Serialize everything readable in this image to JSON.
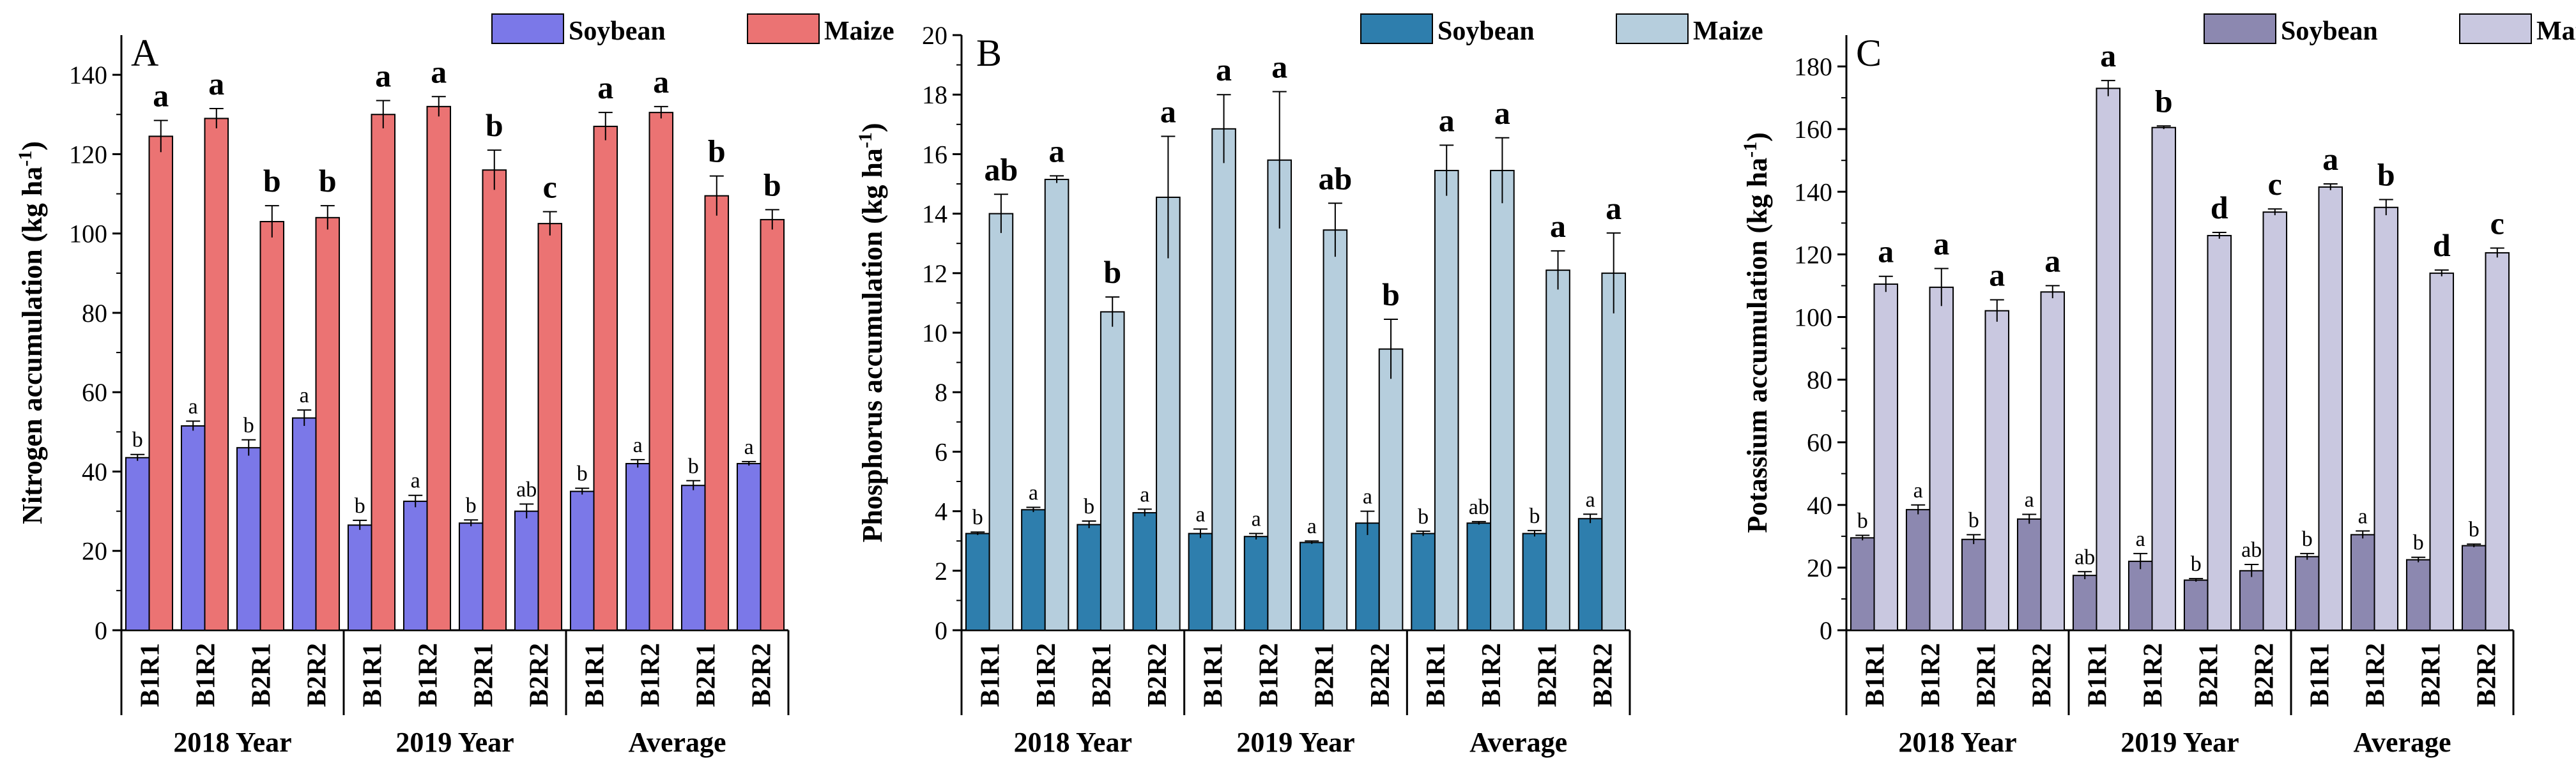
{
  "chart_data": [
    {
      "type": "bar",
      "panel_label": "A",
      "ylabel": "Nitrogen accumulation (kg ha-1)",
      "ylabel_parts": {
        "main": "Nitrogen accumulation (kg ha",
        "sup": "-1",
        "close": ")"
      },
      "ylim": [
        0,
        150
      ],
      "yticks": [
        0,
        20,
        40,
        60,
        80,
        100,
        120,
        140
      ],
      "categories": [
        "B1R1",
        "B1R2",
        "B2R1",
        "B2R2",
        "B1R1",
        "B1R2",
        "B2R1",
        "B2R2",
        "B1R1",
        "B1R2",
        "B2R1",
        "B2R2"
      ],
      "groups": [
        "2018 Year",
        "2019 Year",
        "Average"
      ],
      "legend": [
        "Soybean",
        "Maize"
      ],
      "series": [
        {
          "name": "Soybean",
          "color": "#7B78E8",
          "values": [
            43.5,
            51.5,
            46,
            53.5,
            26.5,
            32.5,
            27,
            30,
            35,
            42,
            36.5,
            42
          ],
          "errors": [
            0.8,
            1.2,
            2,
            2,
            1.2,
            1.5,
            0.8,
            1.8,
            0.8,
            1,
            1.2,
            0.5
          ],
          "letters": [
            "b",
            "a",
            "b",
            "a",
            "b",
            "a",
            "b",
            "ab",
            "b",
            "a",
            "b",
            "a"
          ]
        },
        {
          "name": "Maize",
          "color": "#EB7373",
          "values": [
            124.5,
            129,
            103,
            104,
            130,
            132,
            116,
            102.5,
            127,
            130.5,
            109.5,
            103.5
          ],
          "errors": [
            4,
            2.5,
            4,
            3,
            3.5,
            2.5,
            5,
            3,
            3.5,
            1.5,
            5,
            2.5
          ],
          "letters": [
            "a",
            "a",
            "b",
            "b",
            "a",
            "a",
            "b",
            "c",
            "a",
            "a",
            "b",
            "b"
          ]
        }
      ]
    },
    {
      "type": "bar",
      "panel_label": "B",
      "ylabel": "Phosphorus accumulation  (kg ha-1)",
      "ylabel_parts": {
        "main": "Phosphorus accumulation  (kg ha",
        "sup": "-1",
        "close": ")"
      },
      "ylim": [
        0,
        20
      ],
      "yticks": [
        0,
        2,
        4,
        6,
        8,
        10,
        12,
        14,
        16,
        18,
        20
      ],
      "categories": [
        "B1R1",
        "B1R2",
        "B2R1",
        "B2R2",
        "B1R1",
        "B1R2",
        "B2R1",
        "B2R2",
        "B1R1",
        "B1R2",
        "B2R1",
        "B2R2"
      ],
      "groups": [
        "2018 Year",
        "2019 Year",
        "Average"
      ],
      "legend": [
        "Soybean",
        "Maize"
      ],
      "series": [
        {
          "name": "Soybean",
          "color": "#2E7EAD",
          "values": [
            3.25,
            4.05,
            3.55,
            3.95,
            3.25,
            3.15,
            2.95,
            3.6,
            3.25,
            3.6,
            3.25,
            3.75
          ],
          "errors": [
            0.05,
            0.08,
            0.12,
            0.12,
            0.15,
            0.1,
            0.05,
            0.4,
            0.08,
            0.05,
            0.1,
            0.15
          ],
          "letters": [
            "b",
            "a",
            "b",
            "a",
            "a",
            "a",
            "a",
            "a",
            "b",
            "ab",
            "b",
            "a"
          ]
        },
        {
          "name": "Maize",
          "color": "#B6CEDD",
          "values": [
            14,
            15.15,
            10.7,
            14.55,
            16.85,
            15.8,
            13.45,
            9.45,
            15.45,
            15.45,
            12.1,
            12
          ],
          "errors": [
            0.65,
            0.12,
            0.5,
            2.05,
            1.15,
            2.3,
            0.9,
            1,
            0.85,
            1.1,
            0.65,
            1.35
          ],
          "letters": [
            "ab",
            "a",
            "b",
            "a",
            "a",
            "a",
            "ab",
            "b",
            "a",
            "a",
            "a",
            "a"
          ]
        }
      ]
    },
    {
      "type": "bar",
      "panel_label": "C",
      "ylabel": "Potassium accumulation (kg ha-1)",
      "ylabel_parts": {
        "main": "Potassium accumulation (kg ha",
        "sup": "-1",
        "close": ")"
      },
      "ylim": [
        0,
        190
      ],
      "yticks": [
        0,
        20,
        40,
        60,
        80,
        100,
        120,
        140,
        160,
        180
      ],
      "categories": [
        "B1R1",
        "B1R2",
        "B2R1",
        "B2R2",
        "B1R1",
        "B1R2",
        "B2R1",
        "B2R2",
        "B1R1",
        "B1R2",
        "B2R1",
        "B2R2"
      ],
      "groups": [
        "2018 Year",
        "2019 Year",
        "Average"
      ],
      "legend": [
        "Soybean",
        "Maize"
      ],
      "series": [
        {
          "name": "Soybean",
          "color": "#8C88B0",
          "values": [
            29.5,
            38.5,
            29,
            35.5,
            17.5,
            22,
            16,
            19,
            23.5,
            30.5,
            22.5,
            27
          ],
          "errors": [
            0.8,
            1.5,
            1.5,
            1.5,
            1.2,
            2.5,
            0.5,
            2,
            1,
            1.2,
            0.8,
            0.5
          ],
          "letters": [
            "b",
            "a",
            "b",
            "a",
            "ab",
            "a",
            "b",
            "ab",
            "b",
            "a",
            "b",
            "b"
          ]
        },
        {
          "name": "Maize",
          "color": "#C9C8E0",
          "values": [
            110.5,
            109.5,
            102,
            108,
            173,
            160.5,
            126,
            133.5,
            141.5,
            135,
            114,
            120.5
          ],
          "errors": [
            2.5,
            6,
            3.5,
            2,
            2.5,
            0.5,
            1,
            1,
            1,
            2.5,
            1,
            1.5
          ],
          "letters": [
            "a",
            "a",
            "a",
            "a",
            "a",
            "b",
            "d",
            "c",
            "a",
            "b",
            "d",
            "c"
          ]
        }
      ]
    }
  ]
}
